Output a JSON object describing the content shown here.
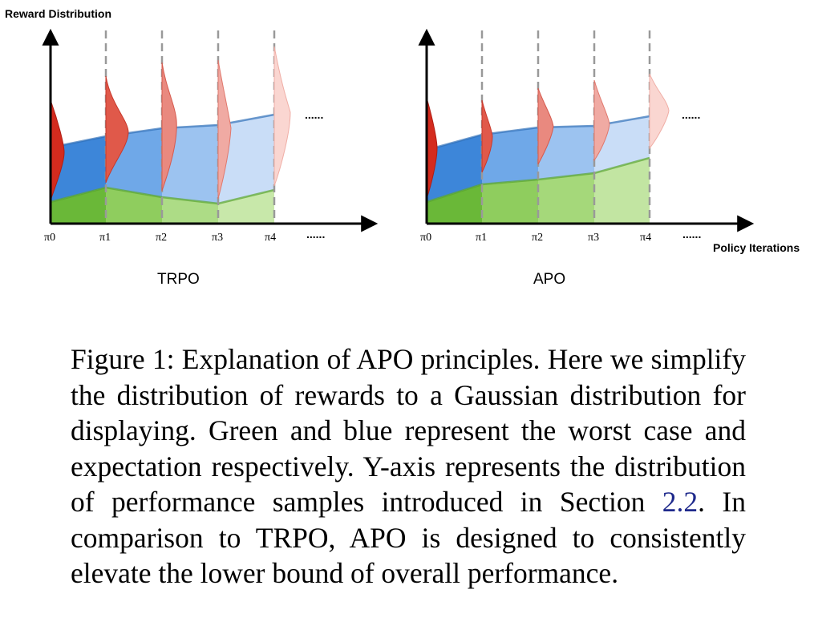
{
  "figure": {
    "y_axis_label": "Reward Distribution",
    "x_axis_label": "Policy Iterations",
    "ellipsis": "......",
    "colors": {
      "green": "#7cc445",
      "blue": "#4a90e2",
      "red": "#d93a2e"
    },
    "panels": [
      {
        "name": "TRPO",
        "ticks": [
          "π0",
          "π1",
          "π2",
          "π3",
          "π4"
        ],
        "worst_case_trend": "rises then declines",
        "expectation_trend": "rises slowly"
      },
      {
        "name": "APO",
        "ticks": [
          "π0",
          "π1",
          "π2",
          "π3",
          "π4"
        ],
        "worst_case_trend": "rises consistently",
        "expectation_trend": "rises slowly"
      }
    ]
  },
  "caption": {
    "prefix": "Figure 1: Explanation of APO principles. Here we simplify the distribution of rewards to a Gaussian distribution for displaying. Green and blue represent the worst case and expectation respectively. Y-axis represents the distribution of performance samples introduced in Section ",
    "section_ref": "2.2",
    "suffix": ". In comparison to TRPO, APO is designed to consistently elevate the lower bound of overall performance."
  }
}
